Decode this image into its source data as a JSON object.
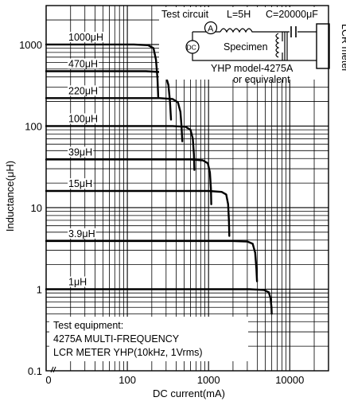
{
  "chart_data": {
    "type": "line",
    "xlabel": "DC current(mA)",
    "ylabel": "Inductance(μH)",
    "x_scale": "log",
    "y_scale": "log",
    "xlim": [
      10,
      30000
    ],
    "ylim": [
      0.1,
      3000
    ],
    "grid": true,
    "x_tick_labels": [
      "0",
      "100",
      "1000",
      "10000"
    ],
    "y_tick_labels": [
      "0.1",
      "1",
      "10",
      "100",
      "1000"
    ],
    "series": [
      {
        "name": "1000μH",
        "x": [
          10,
          120,
          180,
          210,
          225,
          235,
          240
        ],
        "y": [
          1000,
          1000,
          980,
          900,
          650,
          380,
          230
        ]
      },
      {
        "name": "470μH",
        "x": [
          10,
          170,
          250,
          295,
          320,
          335,
          345
        ],
        "y": [
          470,
          470,
          460,
          420,
          320,
          200,
          120
        ]
      },
      {
        "name": "220μH",
        "x": [
          10,
          250,
          360,
          420,
          450,
          465,
          475
        ],
        "y": [
          220,
          220,
          215,
          195,
          150,
          100,
          65
        ]
      },
      {
        "name": "100μH",
        "x": [
          10,
          360,
          520,
          600,
          640,
          660,
          670
        ],
        "y": [
          100,
          100,
          98,
          90,
          70,
          45,
          29
        ]
      },
      {
        "name": "39μH",
        "x": [
          10,
          600,
          850,
          980,
          1040,
          1070,
          1080
        ],
        "y": [
          39,
          39,
          38,
          35,
          27,
          17,
          11
        ]
      },
      {
        "name": "15μH",
        "x": [
          10,
          1000,
          1450,
          1650,
          1740,
          1780,
          1800
        ],
        "y": [
          16,
          16,
          15.6,
          14.5,
          11,
          7,
          4.5
        ]
      },
      {
        "name": "3.9μH",
        "x": [
          10,
          2000,
          3000,
          3500,
          3750,
          3880,
          3950
        ],
        "y": [
          3.9,
          3.9,
          3.85,
          3.6,
          2.8,
          1.8,
          1.25
        ]
      },
      {
        "name": "1μH",
        "x": [
          10,
          3200,
          4800,
          5500,
          5800,
          5950,
          6000
        ],
        "y": [
          1.0,
          1.0,
          0.98,
          0.92,
          0.78,
          0.6,
          0.5
        ]
      }
    ]
  },
  "test_circuit": {
    "title": "Test circuit",
    "inductor": "L=5H",
    "capacitor": "C=20000μF",
    "ammeter": "A",
    "dc_source": "DC",
    "specimen": "Specimen",
    "meter": "LCR meter",
    "model_line1": "YHP model-4275A",
    "model_line2": "or equivalent"
  },
  "test_equipment": {
    "line1": "Test equipment:",
    "line2": "4275A MULTI-FREQUENCY",
    "line3": "LCR METER YHP(10kHz, 1Vrms)"
  }
}
